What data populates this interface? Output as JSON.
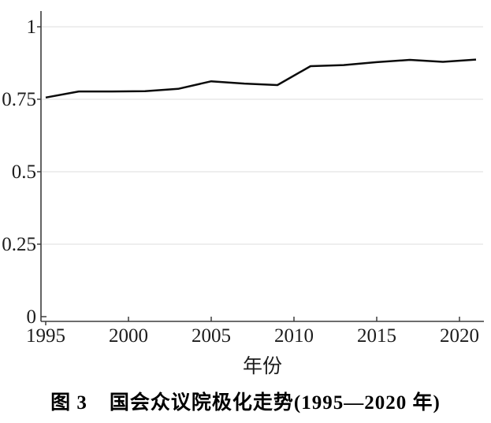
{
  "figure": {
    "background": "#ffffff"
  },
  "chart_data": {
    "type": "line",
    "title": "图 3　国会众议院极化走势(1995—2020 年)",
    "xlabel": "年份",
    "ylabel": "",
    "x": [
      1995,
      1997,
      1999,
      2001,
      2003,
      2005,
      2007,
      2009,
      2011,
      2013,
      2015,
      2017,
      2019,
      2021
    ],
    "values": [
      0.756,
      0.777,
      0.777,
      0.778,
      0.786,
      0.812,
      0.804,
      0.799,
      0.864,
      0.868,
      0.878,
      0.886,
      0.879,
      0.887
    ],
    "x_ticks": [
      1995,
      2000,
      2005,
      2010,
      2015,
      2020
    ],
    "y_ticks": [
      0,
      0.25,
      0.5,
      0.75,
      1
    ],
    "y_tick_labels": [
      "0",
      "0.25",
      "0.5",
      "0.75",
      "1"
    ],
    "xlim": [
      1995,
      2021.5
    ],
    "ylim": [
      0,
      1.05
    ],
    "grid": "horizontal",
    "legend": "none",
    "colors": {
      "line": "#0b0b0b",
      "grid": "#e4e4e4",
      "axis": "#3d3d3d",
      "text": "#1c1c1c",
      "background": "#ffffff"
    }
  },
  "caption": {
    "label": "图 3",
    "title": "国会众议院极化走势(1995—2020 年)"
  }
}
